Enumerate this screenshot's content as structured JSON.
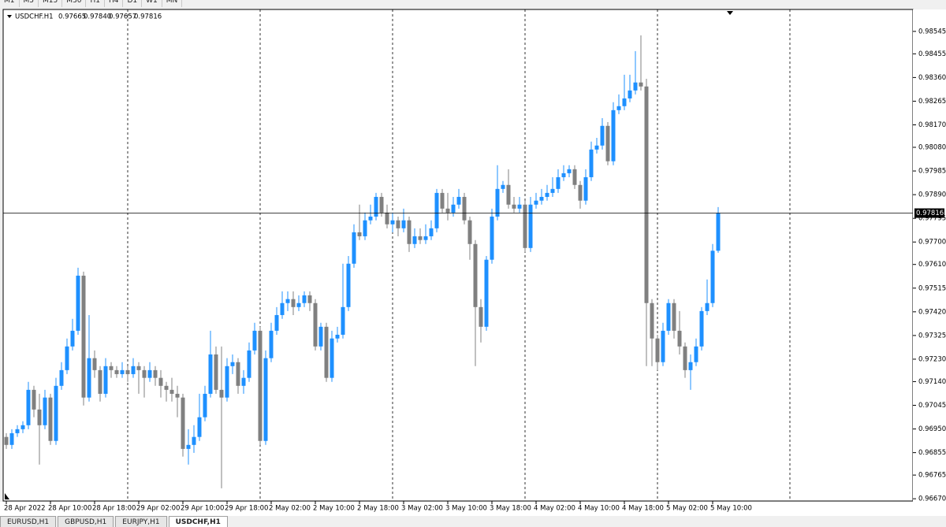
{
  "toolbar": [
    "M1",
    "M5",
    "M15",
    "M30",
    "H1",
    "H4",
    "D1",
    "W1",
    "MN"
  ],
  "tabs": [
    "EURUSD,H1",
    "GBPUSD,H1",
    "EURJPY,H1",
    "USDCHF,H1"
  ],
  "chart_data": {
    "type": "candlestick",
    "title": "USDCHF.H1",
    "header_values": [
      "0.97665",
      "0.97840",
      "0.97657",
      "0.97816"
    ],
    "bid": 0.97816,
    "bull_color": "#1e90ff",
    "bear_color": "#808080",
    "grid": true,
    "ylim": [
      0.96661,
      0.98633
    ],
    "yticks": [
      0.98545,
      0.98455,
      {
        "value": 0.9836,
        "label": "0.98360"
      },
      0.98265,
      {
        "value": 0.9817,
        "label": "0.98170"
      },
      {
        "value": 0.9808,
        "label": "0.98080"
      },
      0.97985,
      {
        "value": 0.9789,
        "label": "0.97890"
      },
      0.97795,
      {
        "value": 0.977,
        "label": "0.97700"
      },
      {
        "value": 0.9761,
        "label": "0.97610"
      },
      0.97515,
      {
        "value": 0.9742,
        "label": "0.97420"
      },
      0.97325,
      {
        "value": 0.9723,
        "label": "0.97230"
      },
      {
        "value": 0.9714,
        "label": "0.97140"
      },
      0.97045,
      {
        "value": 0.9695,
        "label": "0.96950"
      },
      0.96855,
      0.96765,
      {
        "value": 0.9667,
        "label": "0.96670"
      }
    ],
    "categories": [
      "28 Apr 2022",
      null,
      null,
      null,
      null,
      null,
      null,
      null,
      "28 Apr 10:00",
      null,
      null,
      null,
      null,
      null,
      null,
      null,
      "28 Apr 18:00",
      null,
      null,
      null,
      null,
      null,
      null,
      null,
      "29 Apr 02:00",
      null,
      null,
      null,
      null,
      null,
      null,
      null,
      "29 Apr 10:00",
      null,
      null,
      null,
      null,
      null,
      null,
      null,
      "29 Apr 18:00",
      null,
      null,
      null,
      null,
      null,
      null,
      null,
      "2 May 02:00",
      null,
      null,
      null,
      null,
      null,
      null,
      null,
      "2 May 10:00",
      null,
      null,
      null,
      null,
      null,
      null,
      null,
      "2 May 18:00",
      null,
      null,
      null,
      null,
      null,
      null,
      null,
      "3 May 02:00",
      null,
      null,
      null,
      null,
      null,
      null,
      null,
      "3 May 10:00",
      null,
      null,
      null,
      null,
      null,
      null,
      null,
      "3 May 18:00",
      null,
      null,
      null,
      null,
      null,
      null,
      null,
      "4 May 02:00",
      null,
      null,
      null,
      null,
      null,
      null,
      null,
      "4 May 10:00",
      null,
      null,
      null,
      null,
      null,
      null,
      null,
      "4 May 18:00",
      null,
      null,
      null,
      null,
      null,
      null,
      null,
      "5 May 02:00",
      null,
      null,
      null,
      null,
      null,
      null,
      null,
      "5 May 10:00",
      null
    ],
    "ohlc": [
      [
        0.96918,
        0.96933,
        0.9687,
        0.96886
      ],
      [
        0.96886,
        0.96949,
        0.9687,
        0.96933
      ],
      [
        0.96933,
        0.96965,
        0.96918,
        0.96949
      ],
      [
        0.96949,
        0.96981,
        0.96933,
        0.96965
      ],
      [
        0.96965,
        0.97139,
        0.96949,
        0.97107
      ],
      [
        0.97107,
        0.97123,
        0.96997,
        0.97028
      ],
      [
        0.97028,
        0.97091,
        0.96807,
        0.96965
      ],
      [
        0.96965,
        0.97107,
        0.96949,
        0.97076
      ],
      [
        0.97076,
        0.97091,
        0.96886,
        0.96902
      ],
      [
        0.96902,
        0.97155,
        0.96886,
        0.97123
      ],
      [
        0.97123,
        0.97218,
        0.97107,
        0.97186
      ],
      [
        0.97186,
        0.97313,
        0.9717,
        0.97281
      ],
      [
        0.97281,
        0.97392,
        0.97265,
        0.97344
      ],
      [
        0.97344,
        0.97597,
        0.97328,
        0.97565
      ],
      [
        0.97565,
        0.97581,
        0.97044,
        0.97076
      ],
      [
        0.97076,
        0.97407,
        0.9706,
        0.97234
      ],
      [
        0.97234,
        0.97265,
        0.97155,
        0.97186
      ],
      [
        0.97186,
        0.97202,
        0.9706,
        0.97091
      ],
      [
        0.97091,
        0.97234,
        0.97076,
        0.97202
      ],
      [
        0.97202,
        0.97218,
        0.97155,
        0.97186
      ],
      [
        0.97186,
        0.97202,
        0.97155,
        0.9717
      ],
      [
        0.9717,
        0.97218,
        0.97155,
        0.97186
      ],
      [
        0.97186,
        0.97202,
        0.97139,
        0.9717
      ],
      [
        0.9717,
        0.97234,
        0.97155,
        0.97202
      ],
      [
        0.97202,
        0.97218,
        0.97091,
        0.97186
      ],
      [
        0.97186,
        0.97202,
        0.97076,
        0.97155
      ],
      [
        0.97155,
        0.97218,
        0.97139,
        0.97186
      ],
      [
        0.97186,
        0.97202,
        0.97123,
        0.97155
      ],
      [
        0.97155,
        0.97186,
        0.97076,
        0.97123
      ],
      [
        0.97123,
        0.97139,
        0.9706,
        0.97107
      ],
      [
        0.97107,
        0.97155,
        0.9706,
        0.97091
      ],
      [
        0.97091,
        0.97123,
        0.96997,
        0.97076
      ],
      [
        0.97076,
        0.97091,
        0.96839,
        0.9687
      ],
      [
        0.9687,
        0.96949,
        0.96807,
        0.96886
      ],
      [
        0.96886,
        0.96965,
        0.96854,
        0.96918
      ],
      [
        0.96918,
        0.97091,
        0.96902,
        0.96997
      ],
      [
        0.96997,
        0.97123,
        0.96981,
        0.97091
      ],
      [
        0.97091,
        0.97344,
        0.97076,
        0.97249
      ],
      [
        0.97249,
        0.97281,
        0.97091,
        0.97107
      ],
      [
        0.97107,
        0.97281,
        0.96712,
        0.97076
      ],
      [
        0.97076,
        0.97234,
        0.9706,
        0.97202
      ],
      [
        0.97202,
        0.97249,
        0.9717,
        0.97218
      ],
      [
        0.97218,
        0.97234,
        0.97091,
        0.97123
      ],
      [
        0.97123,
        0.97186,
        0.97091,
        0.97155
      ],
      [
        0.97155,
        0.97297,
        0.97139,
        0.97265
      ],
      [
        0.97265,
        0.97376,
        0.97249,
        0.97344
      ],
      [
        0.97344,
        0.9736,
        0.96886,
        0.96902
      ],
      [
        0.96902,
        0.97265,
        0.96886,
        0.97234
      ],
      [
        0.97234,
        0.97376,
        0.97218,
        0.97344
      ],
      [
        0.97344,
        0.97439,
        0.97328,
        0.97407
      ],
      [
        0.97407,
        0.97502,
        0.97392,
        0.97455
      ],
      [
        0.97455,
        0.97502,
        0.97423,
        0.97471
      ],
      [
        0.97471,
        0.97502,
        0.97407,
        0.97439
      ],
      [
        0.97439,
        0.97486,
        0.97423,
        0.97455
      ],
      [
        0.97455,
        0.97502,
        0.97439,
        0.97486
      ],
      [
        0.97486,
        0.97502,
        0.97423,
        0.97455
      ],
      [
        0.97455,
        0.97471,
        0.97265,
        0.97281
      ],
      [
        0.97281,
        0.97376,
        0.97265,
        0.9736
      ],
      [
        0.9736,
        0.97376,
        0.97139,
        0.97155
      ],
      [
        0.97155,
        0.97344,
        0.97139,
        0.97313
      ],
      [
        0.97313,
        0.9736,
        0.97297,
        0.97328
      ],
      [
        0.97328,
        0.97613,
        0.97313,
        0.97439
      ],
      [
        0.97439,
        0.97644,
        0.97423,
        0.97613
      ],
      [
        0.97613,
        0.97771,
        0.97597,
        0.97739
      ],
      [
        0.97739,
        0.9785,
        0.97708,
        0.97723
      ],
      [
        0.97723,
        0.97818,
        0.97708,
        0.97787
      ],
      [
        0.97787,
        0.9785,
        0.97771,
        0.97802
      ],
      [
        0.97802,
        0.97897,
        0.97787,
        0.97881
      ],
      [
        0.97881,
        0.97897,
        0.97802,
        0.97818
      ],
      [
        0.97818,
        0.9785,
        0.97755,
        0.97771
      ],
      [
        0.97771,
        0.97818,
        0.97739,
        0.97787
      ],
      [
        0.97787,
        0.97802,
        0.97723,
        0.97755
      ],
      [
        0.97755,
        0.97834,
        0.97739,
        0.97787
      ],
      [
        0.97787,
        0.97802,
        0.9766,
        0.97692
      ],
      [
        0.97692,
        0.97755,
        0.97676,
        0.97723
      ],
      [
        0.97723,
        0.97755,
        0.97692,
        0.97708
      ],
      [
        0.97708,
        0.97771,
        0.97692,
        0.97723
      ],
      [
        0.97723,
        0.97787,
        0.97708,
        0.97755
      ],
      [
        0.97755,
        0.97913,
        0.97739,
        0.97897
      ],
      [
        0.97897,
        0.97913,
        0.97818,
        0.97834
      ],
      [
        0.97834,
        0.97897,
        0.97787,
        0.97818
      ],
      [
        0.97818,
        0.97881,
        0.97802,
        0.9785
      ],
      [
        0.9785,
        0.97913,
        0.97834,
        0.97881
      ],
      [
        0.97881,
        0.97897,
        0.97771,
        0.97787
      ],
      [
        0.97787,
        0.97802,
        0.97629,
        0.97692
      ],
      [
        0.97692,
        0.97708,
        0.97202,
        0.97439
      ],
      [
        0.97439,
        0.97471,
        0.97297,
        0.9736
      ],
      [
        0.9736,
        0.97644,
        0.97344,
        0.97629
      ],
      [
        0.97629,
        0.97834,
        0.97613,
        0.97802
      ],
      [
        0.97802,
        0.98008,
        0.97787,
        0.97913
      ],
      [
        0.97913,
        0.97945,
        0.97897,
        0.97929
      ],
      [
        0.97929,
        0.97992,
        0.97834,
        0.9785
      ],
      [
        0.9785,
        0.97881,
        0.97818,
        0.97834
      ],
      [
        0.97834,
        0.97881,
        0.97818,
        0.9785
      ],
      [
        0.9785,
        0.97866,
        0.9766,
        0.97676
      ],
      [
        0.97676,
        0.97881,
        0.9766,
        0.9785
      ],
      [
        0.9785,
        0.97897,
        0.97834,
        0.97866
      ],
      [
        0.97866,
        0.97913,
        0.9785,
        0.97881
      ],
      [
        0.97881,
        0.97929,
        0.97866,
        0.97897
      ],
      [
        0.97897,
        0.9796,
        0.97881,
        0.97913
      ],
      [
        0.97913,
        0.97992,
        0.97897,
        0.9796
      ],
      [
        0.9796,
        0.98008,
        0.97945,
        0.97976
      ],
      [
        0.97976,
        0.98008,
        0.9796,
        0.97992
      ],
      [
        0.97992,
        0.98008,
        0.97913,
        0.97929
      ],
      [
        0.97929,
        0.97945,
        0.97834,
        0.97866
      ],
      [
        0.97866,
        0.97992,
        0.9785,
        0.9796
      ],
      [
        0.9796,
        0.98103,
        0.97945,
        0.98071
      ],
      [
        0.98071,
        0.98118,
        0.98055,
        0.98087
      ],
      [
        0.98087,
        0.98197,
        0.98071,
        0.98166
      ],
      [
        0.98166,
        0.98181,
        0.98008,
        0.98024
      ],
      [
        0.98024,
        0.98261,
        0.98008,
        0.98229
      ],
      [
        0.98229,
        0.98292,
        0.98213,
        0.98245
      ],
      [
        0.98245,
        0.98371,
        0.98229,
        0.98276
      ],
      [
        0.98276,
        0.98371,
        0.98261,
        0.98308
      ],
      [
        0.98308,
        0.98466,
        0.98292,
        0.9834
      ],
      [
        0.9834,
        0.98529,
        0.98308,
        0.98324
      ],
      [
        0.98324,
        0.98355,
        0.97202,
        0.97455
      ],
      [
        0.97455,
        0.97471,
        0.97202,
        0.97313
      ],
      [
        0.97313,
        0.97328,
        0.97186,
        0.97218
      ],
      [
        0.97218,
        0.97376,
        0.97202,
        0.97344
      ],
      [
        0.97344,
        0.97471,
        0.97328,
        0.97455
      ],
      [
        0.97455,
        0.97471,
        0.97313,
        0.97344
      ],
      [
        0.97344,
        0.97423,
        0.97249,
        0.97281
      ],
      [
        0.97281,
        0.97297,
        0.97155,
        0.97186
      ],
      [
        0.97186,
        0.97249,
        0.97107,
        0.97218
      ],
      [
        0.97218,
        0.97313,
        0.97202,
        0.97281
      ],
      [
        0.97281,
        0.97439,
        0.97265,
        0.97423
      ],
      [
        0.97423,
        0.9755,
        0.97407,
        0.97455
      ],
      [
        0.97455,
        0.97692,
        0.97439,
        0.97665
      ],
      [
        0.97665,
        0.9784,
        0.97657,
        0.97816
      ]
    ]
  }
}
